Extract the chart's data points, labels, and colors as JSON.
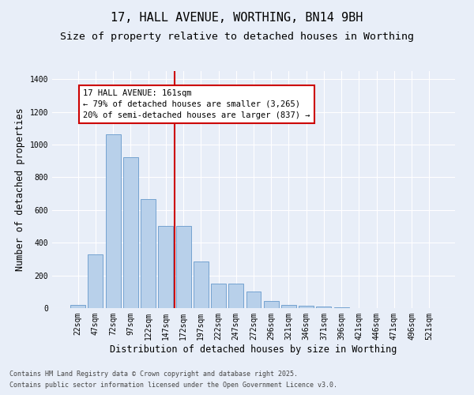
{
  "title1": "17, HALL AVENUE, WORTHING, BN14 9BH",
  "title2": "Size of property relative to detached houses in Worthing",
  "xlabel": "Distribution of detached houses by size in Worthing",
  "ylabel": "Number of detached properties",
  "categories": [
    "22sqm",
    "47sqm",
    "72sqm",
    "97sqm",
    "122sqm",
    "147sqm",
    "172sqm",
    "197sqm",
    "222sqm",
    "247sqm",
    "272sqm",
    "296sqm",
    "321sqm",
    "346sqm",
    "371sqm",
    "396sqm",
    "421sqm",
    "446sqm",
    "471sqm",
    "496sqm",
    "521sqm"
  ],
  "values": [
    20,
    330,
    1065,
    925,
    665,
    505,
    505,
    285,
    150,
    150,
    100,
    45,
    20,
    15,
    10,
    3,
    0,
    0,
    0,
    0,
    0
  ],
  "bar_color": "#b8d0ea",
  "bar_edge_color": "#6699cc",
  "background_color": "#e8eef8",
  "grid_color": "#ffffff",
  "vline_color": "#cc0000",
  "annotation_title": "17 HALL AVENUE: 161sqm",
  "annotation_line1": "← 79% of detached houses are smaller (3,265)",
  "annotation_line2": "20% of semi-detached houses are larger (837) →",
  "annotation_box_color": "#ffffff",
  "annotation_box_edge": "#cc0000",
  "ylim": [
    0,
    1450
  ],
  "yticks": [
    0,
    200,
    400,
    600,
    800,
    1000,
    1200,
    1400
  ],
  "footnote1": "Contains HM Land Registry data © Crown copyright and database right 2025.",
  "footnote2": "Contains public sector information licensed under the Open Government Licence v3.0.",
  "title_fontsize": 11,
  "subtitle_fontsize": 9.5,
  "axis_label_fontsize": 8.5,
  "tick_fontsize": 7,
  "annotation_fontsize": 7.5,
  "footnote_fontsize": 6
}
